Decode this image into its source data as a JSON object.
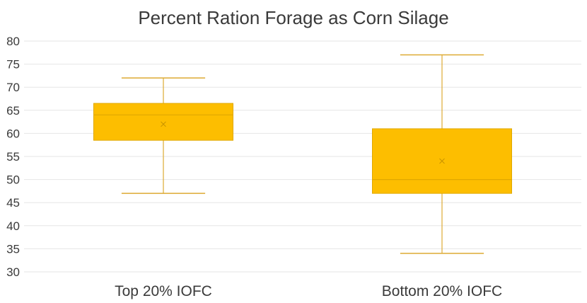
{
  "chart_data": {
    "type": "boxplot",
    "title": "Percent Ration Forage as Corn Silage",
    "xlabel": "",
    "ylabel": "",
    "ylim": [
      30,
      80
    ],
    "yticks": [
      30,
      35,
      40,
      45,
      50,
      55,
      60,
      65,
      70,
      75,
      80
    ],
    "grid": true,
    "legend": "none",
    "categories": [
      "Top 20% IOFC",
      "Bottom 20% IOFC"
    ],
    "series": [
      {
        "category": "Top 20% IOFC",
        "min": 47,
        "q1": 58.5,
        "median": 64,
        "q3": 66.5,
        "max": 72,
        "mean": 62
      },
      {
        "category": "Bottom 20% IOFC",
        "min": 34,
        "q1": 47,
        "median": 50,
        "q3": 61,
        "max": 77,
        "mean": 54
      }
    ],
    "colors": {
      "box_fill": "#FDBE00",
      "box_stroke": "#E0A800",
      "whisker": "#DDAA33",
      "mean_marker": "#C89400"
    }
  }
}
